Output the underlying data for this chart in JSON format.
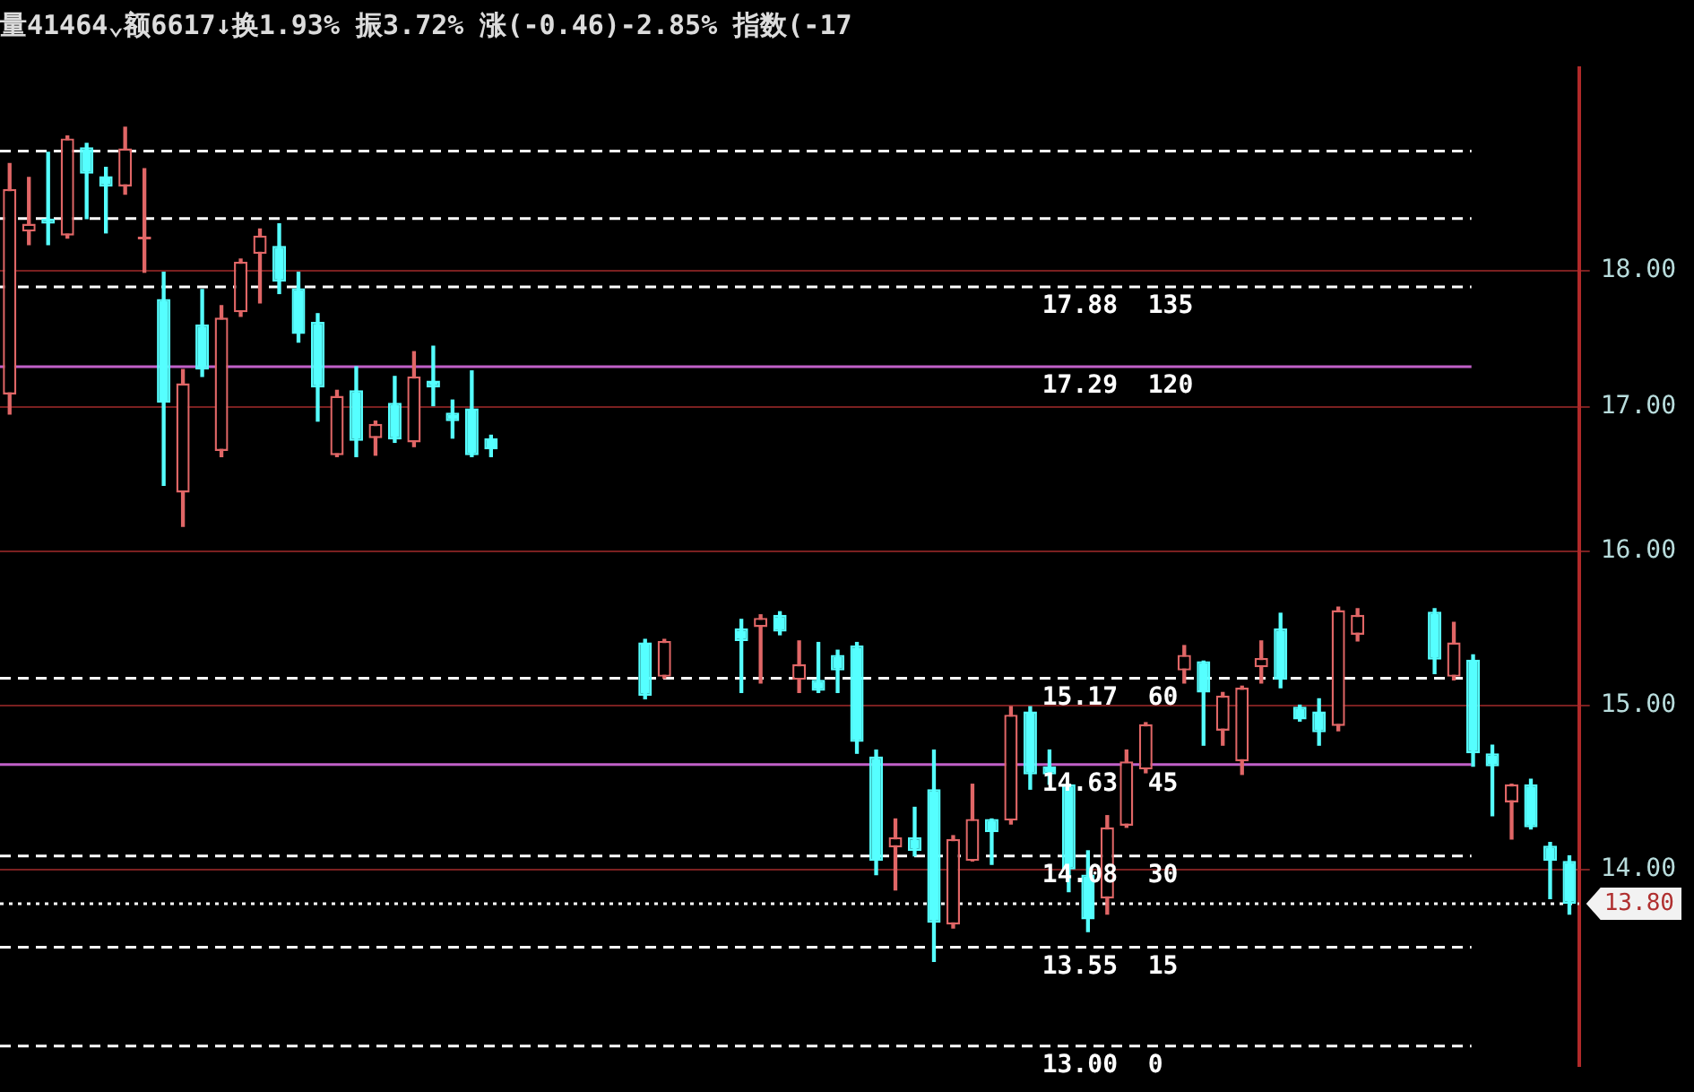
{
  "chart_data": {
    "type": "candlestick",
    "title": "量41464⌄额6617↓换1.93% 振3.72% 涨(-0.46)-2.85% 指数(-17",
    "categories": [
      null,
      null,
      null,
      null,
      null,
      null,
      null,
      null,
      null,
      null,
      null,
      null,
      null,
      null,
      null,
      null,
      null,
      null,
      null,
      null,
      null,
      null,
      null,
      null,
      null,
      null,
      null,
      null,
      null,
      null,
      null,
      null,
      null,
      null,
      null,
      null,
      null,
      null,
      null,
      null,
      null,
      null,
      null,
      null,
      null,
      null,
      null,
      null,
      null,
      null,
      null,
      null,
      null,
      null,
      null,
      null,
      null,
      null,
      null,
      null,
      null,
      null,
      null,
      null,
      null,
      null,
      null,
      null,
      null,
      null,
      null,
      null,
      null,
      null,
      null,
      null,
      null,
      null,
      null,
      null,
      null,
      null
    ],
    "ohlc": [
      [
        17.09,
        18.83,
        16.95,
        18.63
      ],
      [
        18.3,
        18.72,
        18.2,
        18.36
      ],
      [
        18.4,
        18.92,
        18.2,
        18.36
      ],
      [
        18.27,
        19.05,
        18.25,
        19.03
      ],
      [
        18.96,
        18.99,
        18.4,
        18.75
      ],
      [
        18.73,
        18.8,
        18.29,
        18.65
      ],
      [
        18.65,
        19.12,
        18.59,
        18.95
      ],
      [
        18.24,
        18.79,
        17.99,
        18.26
      ],
      [
        17.79,
        17.99,
        16.45,
        17.03
      ],
      [
        16.4,
        17.27,
        16.17,
        17.17
      ],
      [
        17.6,
        17.86,
        17.22,
        17.27
      ],
      [
        16.69,
        17.74,
        16.65,
        17.65
      ],
      [
        17.69,
        18.09,
        17.66,
        18.07
      ],
      [
        18.13,
        18.32,
        17.76,
        18.27
      ],
      [
        18.19,
        18.36,
        17.83,
        17.92
      ],
      [
        17.87,
        17.99,
        17.47,
        17.53
      ],
      [
        17.62,
        17.68,
        16.9,
        17.14
      ],
      [
        16.66,
        17.12,
        16.65,
        17.08
      ],
      [
        17.12,
        17.29,
        16.65,
        16.76
      ],
      [
        16.78,
        16.9,
        16.66,
        16.88
      ],
      [
        17.03,
        17.22,
        16.75,
        16.77
      ],
      [
        16.75,
        17.4,
        16.72,
        17.22
      ],
      [
        17.19,
        17.44,
        17.01,
        17.14
      ],
      [
        16.96,
        17.05,
        16.78,
        16.9
      ],
      [
        16.99,
        17.26,
        16.65,
        16.66
      ],
      [
        16.78,
        16.8,
        16.65,
        16.7
      ],
      null,
      null,
      null,
      null,
      null,
      null,
      null,
      [
        15.4,
        15.42,
        15.04,
        15.06
      ],
      [
        15.18,
        15.42,
        15.17,
        15.41
      ],
      null,
      null,
      null,
      [
        15.49,
        15.55,
        15.08,
        15.41
      ],
      [
        15.5,
        15.58,
        15.14,
        15.56
      ],
      [
        15.58,
        15.6,
        15.45,
        15.47
      ],
      [
        15.16,
        15.41,
        15.08,
        15.26
      ],
      [
        15.16,
        15.4,
        15.08,
        15.09
      ],
      [
        15.32,
        15.35,
        15.08,
        15.22
      ],
      [
        15.38,
        15.4,
        14.7,
        14.77
      ],
      [
        14.68,
        14.72,
        13.97,
        14.05
      ],
      [
        14.13,
        14.3,
        13.88,
        14.19
      ],
      [
        14.19,
        14.37,
        14.08,
        14.11
      ],
      [
        14.48,
        14.72,
        13.47,
        13.69
      ],
      [
        13.68,
        14.2,
        13.66,
        14.18
      ],
      [
        14.05,
        14.51,
        14.05,
        14.3
      ],
      [
        14.3,
        14.3,
        14.03,
        14.22
      ],
      [
        14.29,
        14.99,
        14.27,
        14.94
      ],
      [
        14.96,
        14.99,
        14.48,
        14.57
      ],
      [
        14.62,
        14.72,
        14.51,
        14.57
      ],
      [
        14.51,
        14.51,
        13.87,
        14.0
      ],
      [
        13.97,
        14.11,
        13.64,
        13.71
      ],
      [
        13.83,
        14.32,
        13.74,
        14.25
      ],
      [
        14.26,
        14.72,
        14.25,
        14.65
      ],
      [
        14.6,
        14.89,
        14.58,
        14.88
      ],
      null,
      [
        15.22,
        15.38,
        15.14,
        15.32
      ],
      [
        15.28,
        15.28,
        14.75,
        15.08
      ],
      [
        14.84,
        15.08,
        14.75,
        15.06
      ],
      [
        14.65,
        15.12,
        14.57,
        15.11
      ],
      [
        15.24,
        15.41,
        15.14,
        15.3
      ],
      [
        15.49,
        15.59,
        15.11,
        15.16
      ],
      [
        14.99,
        15.0,
        14.9,
        14.91
      ],
      [
        14.96,
        15.04,
        14.75,
        14.83
      ],
      [
        14.87,
        15.63,
        14.84,
        15.61
      ],
      [
        15.45,
        15.62,
        15.41,
        15.58
      ],
      null,
      null,
      null,
      [
        15.6,
        15.62,
        15.2,
        15.29
      ],
      [
        15.18,
        15.53,
        15.16,
        15.4
      ],
      [
        15.29,
        15.32,
        14.62,
        14.7
      ],
      [
        14.7,
        14.75,
        14.32,
        14.62
      ],
      [
        14.4,
        14.51,
        14.18,
        14.51
      ],
      [
        14.51,
        14.54,
        14.24,
        14.25
      ],
      [
        14.14,
        14.16,
        13.83,
        14.05
      ],
      [
        14.05,
        14.08,
        13.74,
        13.8
      ]
    ],
    "colors": [
      "#e06666",
      "#e06666",
      "#55ffff",
      "#e06666",
      "#55ffff",
      "#55ffff",
      "#e06666",
      "#e06666",
      "#55ffff",
      "#e06666",
      "#55ffff",
      "#e06666",
      "#e06666",
      "#e06666",
      "#55ffff",
      "#55ffff",
      "#55ffff",
      "#e06666",
      "#55ffff",
      "#e06666",
      "#55ffff",
      "#e06666",
      "#55ffff",
      "#55ffff",
      "#55ffff",
      "#55ffff",
      null,
      null,
      null,
      null,
      null,
      null,
      null,
      "#55ffff",
      "#e06666",
      null,
      null,
      null,
      "#55ffff",
      "#e06666",
      "#55ffff",
      "#e06666",
      "#55ffff",
      "#55ffff",
      "#55ffff",
      "#55ffff",
      "#e06666",
      "#55ffff",
      "#55ffff",
      "#e06666",
      "#e06666",
      "#55ffff",
      "#e06666",
      "#55ffff",
      "#55ffff",
      "#55ffff",
      "#55ffff",
      "#e06666",
      "#e06666",
      "#e06666",
      null,
      "#e06666",
      "#55ffff",
      "#e06666",
      "#e06666",
      "#e06666",
      "#55ffff",
      "#55ffff",
      "#55ffff",
      "#e06666",
      "#e06666",
      null,
      null,
      null,
      "#55ffff",
      "#e06666",
      "#55ffff",
      "#55ffff",
      "#e06666",
      "#55ffff",
      "#55ffff",
      "#55ffff"
    ],
    "ylim": [
      12.89,
      19.6
    ],
    "yticks": [
      {
        "value": 14,
        "label": "14.00"
      },
      {
        "value": 15,
        "label": "15.00"
      },
      {
        "value": 16,
        "label": "16.00"
      },
      {
        "value": 17,
        "label": "17.00"
      },
      {
        "value": 18,
        "label": "18.00"
      }
    ],
    "log": true,
    "grid": "y",
    "legend": false,
    "ref_lines": [
      {
        "axis": "y",
        "value": 18.93,
        "label": null,
        "color": "#ffffff",
        "line_style": "dashed"
      },
      {
        "axis": "y",
        "value": 18.4,
        "label": null,
        "color": "#ffffff",
        "line_style": "dashed"
      },
      {
        "axis": "y",
        "value": 17.88,
        "label": "17.88  135",
        "color": "#ffffff",
        "line_style": "dashed"
      },
      {
        "axis": "y",
        "value": 17.29,
        "label": "17.29  120",
        "color": "#c060c8",
        "line_style": "solid"
      },
      {
        "axis": "y",
        "value": 15.17,
        "label": "15.17  60",
        "color": "#ffffff",
        "line_style": "dashed"
      },
      {
        "axis": "y",
        "value": 14.63,
        "label": "14.63  45",
        "color": "#c060c8",
        "line_style": "solid"
      },
      {
        "axis": "y",
        "value": 14.08,
        "label": "14.08  30",
        "color": "#ffffff",
        "line_style": "dashed"
      },
      {
        "axis": "y",
        "value": 13.8,
        "label": "13.80",
        "color": "#ffffff",
        "line_style": "dotted"
      },
      {
        "axis": "y",
        "value": 13.55,
        "label": "13.55  15",
        "color": "#ffffff",
        "line_style": "dashed"
      },
      {
        "axis": "y",
        "value": 13.0,
        "label": "13.00  0",
        "color": "#ffffff",
        "line_style": "dashed"
      }
    ]
  }
}
